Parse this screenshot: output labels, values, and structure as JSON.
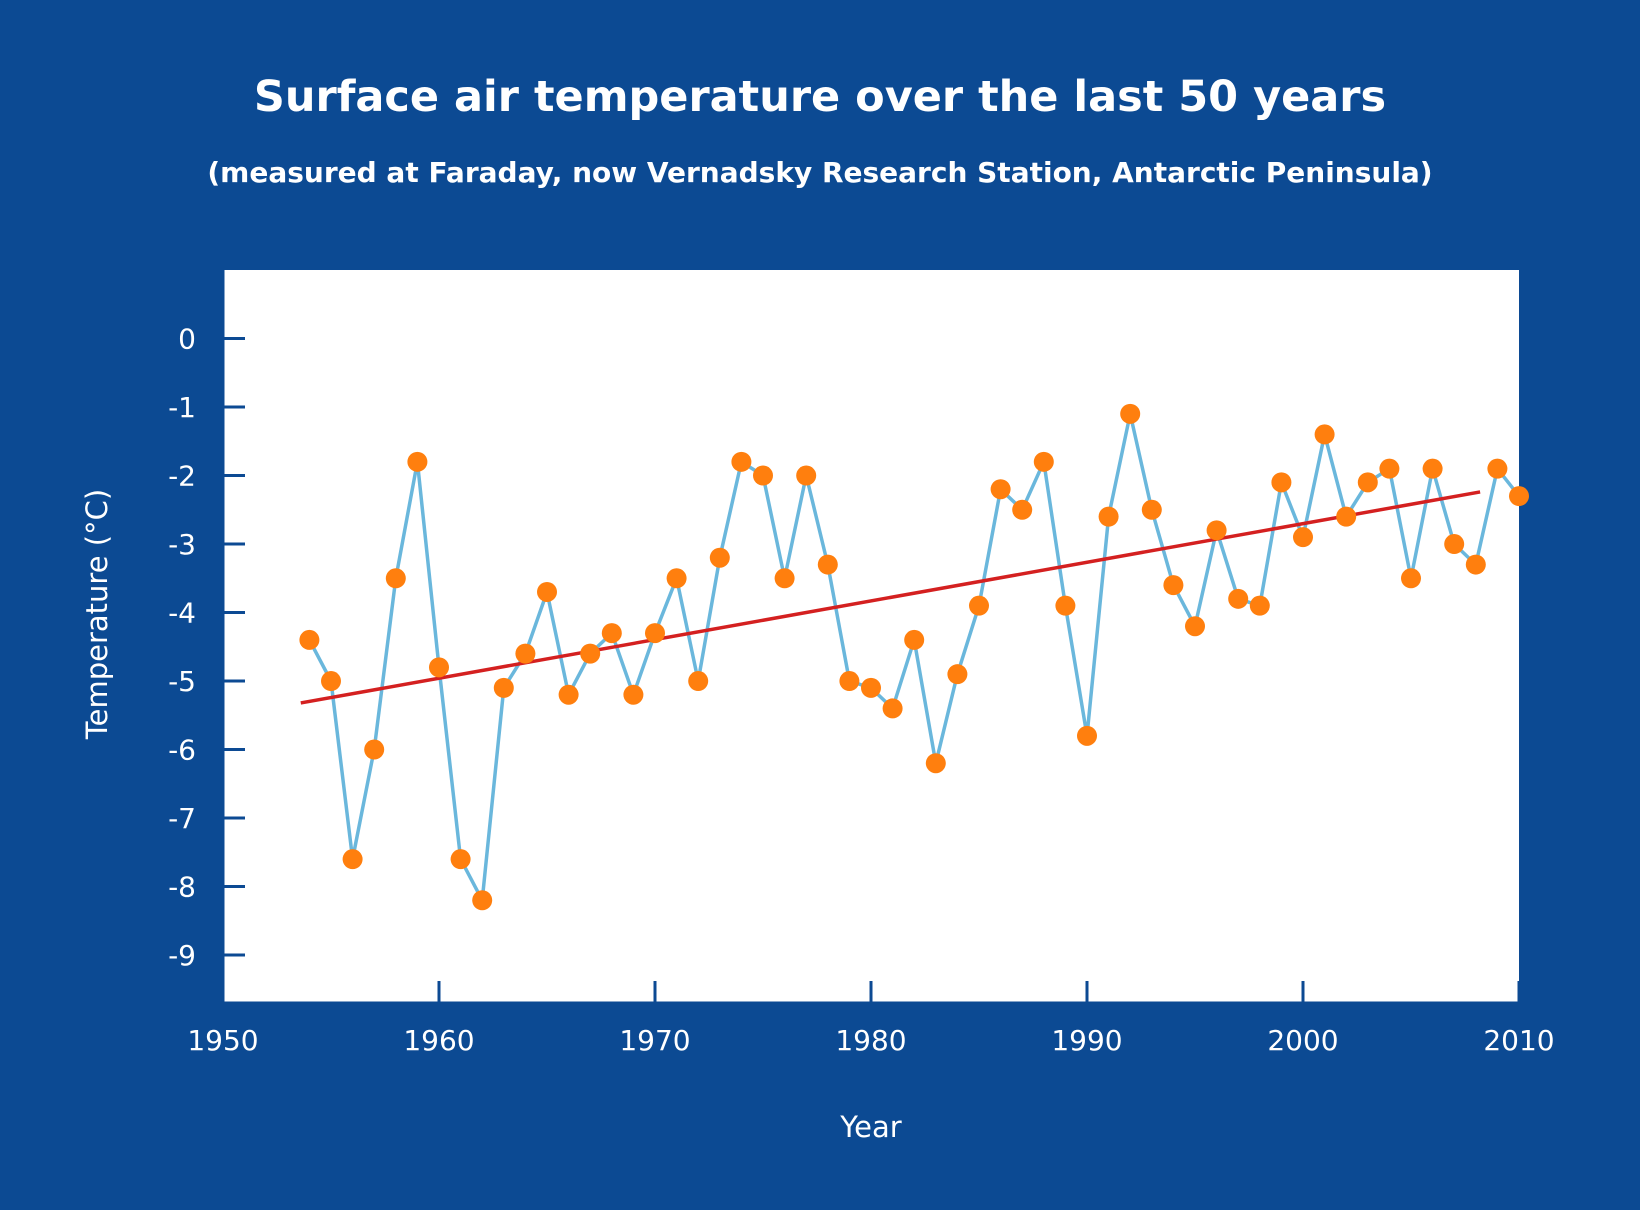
{
  "chart_data": {
    "type": "line",
    "title": "Surface air temperature over the last 50 years",
    "subtitle": "(measured at Faraday, now Vernadsky Research Station, Antarctic Peninsula)",
    "xlabel": "Year",
    "ylabel": "Temperature (°C)",
    "xlim": [
      1950,
      2010
    ],
    "ylim": [
      -9.7,
      1.0
    ],
    "xticks": [
      1950,
      1960,
      1970,
      1980,
      1990,
      2000,
      2010
    ],
    "yticks": [
      0,
      -1,
      -2,
      -3,
      -4,
      -5,
      -6,
      -7,
      -8,
      -9
    ],
    "grid": false,
    "colors": {
      "background": "#0c4a93",
      "plot_area": "#ffffff",
      "line": "#6ab7dc",
      "points": "#ff7f0e",
      "trend": "#d42020"
    },
    "series": [
      {
        "x": [
          1954,
          1955,
          1956,
          1957,
          1958,
          1959,
          1960,
          1961,
          1962,
          1963,
          1964,
          1965,
          1966,
          1967,
          1968,
          1969,
          1970,
          1971,
          1972,
          1973,
          1974,
          1975,
          1976,
          1977,
          1978,
          1979,
          1980,
          1981,
          1982,
          1983,
          1984,
          1985,
          1986,
          1987,
          1988,
          1989,
          1990,
          1991,
          1992,
          1993,
          1994,
          1995,
          1996,
          1997,
          1998,
          1999,
          2000,
          2001,
          2002,
          2003,
          2004,
          2005,
          2006,
          2007,
          2008,
          2009,
          2010
        ],
        "values": [
          -4.4,
          -5.0,
          -7.6,
          -6.0,
          -3.5,
          -1.8,
          -4.8,
          -7.6,
          -8.2,
          -5.1,
          -4.6,
          -3.7,
          -5.2,
          -4.6,
          -4.3,
          -5.2,
          -4.3,
          -3.5,
          -5.0,
          -3.2,
          -1.8,
          -2.0,
          -3.5,
          -2.0,
          -3.3,
          -5.0,
          -5.1,
          -5.4,
          -4.4,
          -6.2,
          -4.9,
          -3.9,
          -2.2,
          -2.5,
          -1.8,
          -3.9,
          -5.8,
          -2.6,
          -1.1,
          -2.5,
          -3.6,
          -4.2,
          -2.8,
          -3.8,
          -3.9,
          -2.1,
          -2.9,
          -1.4,
          -2.6,
          -2.1,
          -1.9,
          -3.5,
          -1.9,
          -3.0,
          -3.3,
          -1.9,
          -2.3
        ]
      }
    ],
    "trend": {
      "x": [
        1953.6,
        2008.2
      ],
      "values": [
        -5.32,
        -2.24
      ]
    }
  }
}
